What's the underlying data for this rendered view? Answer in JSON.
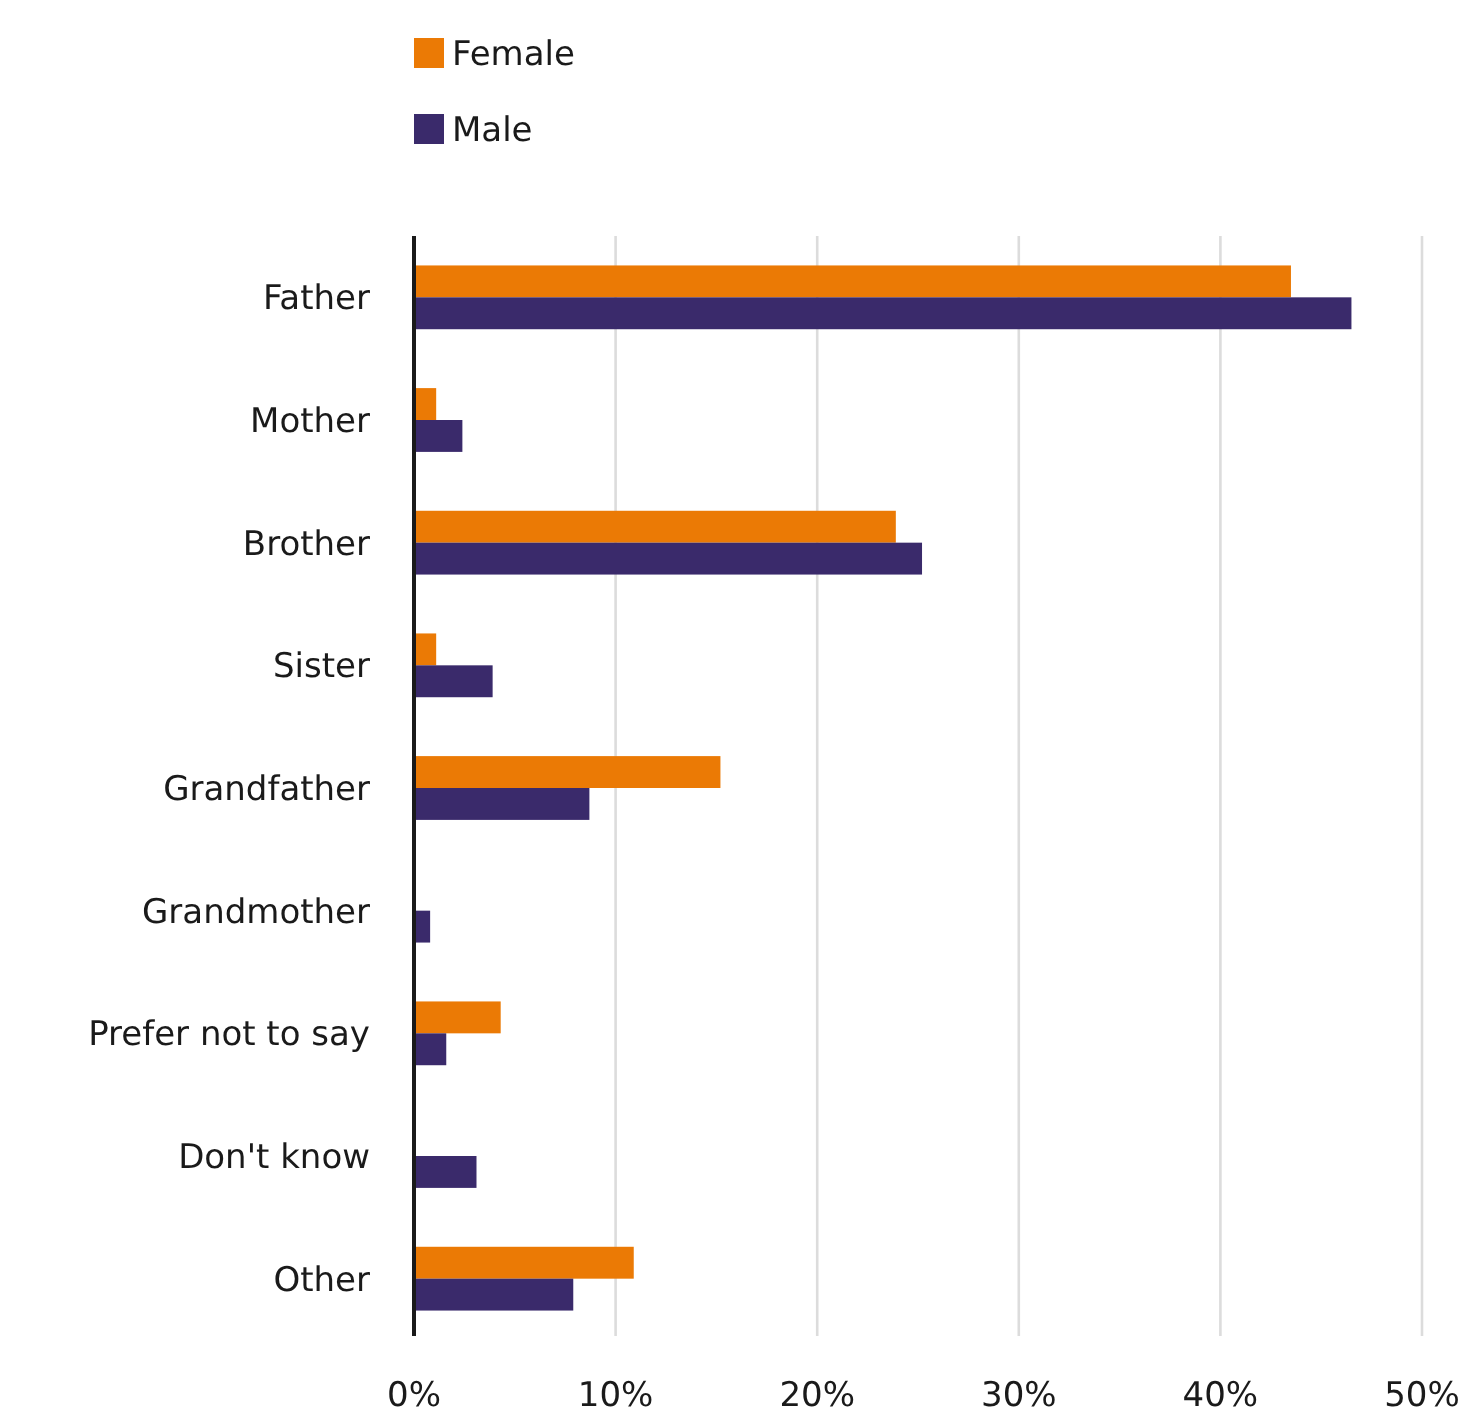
{
  "chart_data": {
    "type": "bar",
    "orientation": "horizontal",
    "categories": [
      "Father",
      "Mother",
      "Brother",
      "Sister",
      "Grandfather",
      "Grandmother",
      "Prefer not to say",
      "Don't know",
      "Other"
    ],
    "series": [
      {
        "name": "Female",
        "color": "#eb7a05",
        "values": [
          43.5,
          1.1,
          23.9,
          1.1,
          15.2,
          null,
          4.3,
          null,
          10.9
        ]
      },
      {
        "name": "Male",
        "color": "#3a2a6b",
        "values": [
          46.5,
          2.4,
          25.2,
          3.9,
          8.7,
          0.8,
          1.6,
          3.1,
          7.9
        ]
      }
    ],
    "xlim": [
      0,
      50
    ],
    "xticks": [
      {
        "value": 0,
        "label": "0%"
      },
      {
        "value": 10,
        "label": "10%"
      },
      {
        "value": 20,
        "label": "20%"
      },
      {
        "value": 30,
        "label": "30%"
      },
      {
        "value": 40,
        "label": "40%"
      },
      {
        "value": 50,
        "label": "50%"
      }
    ],
    "grid": "x",
    "legend": "top left"
  }
}
